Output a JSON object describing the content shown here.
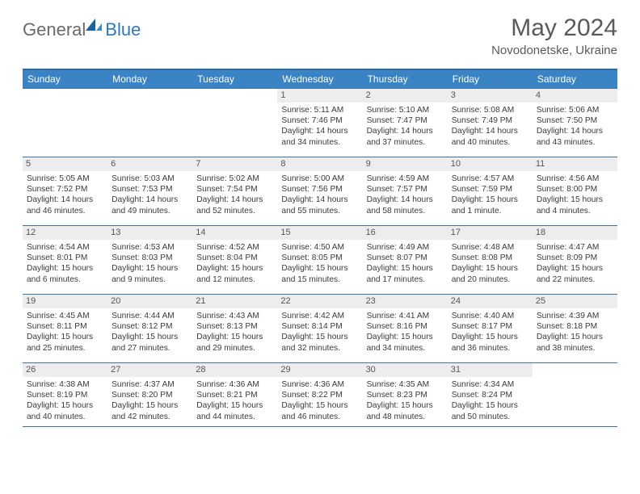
{
  "logo": {
    "text1": "General",
    "text2": "Blue"
  },
  "title": "May 2024",
  "location": "Novodonetske, Ukraine",
  "colors": {
    "header_bg": "#3a84c6",
    "header_border": "#2b6aa3",
    "row_border": "#3a74a8",
    "daynum_bg": "#ededed",
    "logo_gray": "#6a6a6a",
    "logo_blue": "#3178b9",
    "text_gray": "#5a5a5a",
    "cell_text": "#3a3a3a"
  },
  "daysOfWeek": [
    "Sunday",
    "Monday",
    "Tuesday",
    "Wednesday",
    "Thursday",
    "Friday",
    "Saturday"
  ],
  "weeks": [
    [
      null,
      null,
      null,
      {
        "n": "1",
        "sr": "5:11 AM",
        "ss": "7:46 PM",
        "dl1": "Daylight: 14 hours",
        "dl2": "and 34 minutes."
      },
      {
        "n": "2",
        "sr": "5:10 AM",
        "ss": "7:47 PM",
        "dl1": "Daylight: 14 hours",
        "dl2": "and 37 minutes."
      },
      {
        "n": "3",
        "sr": "5:08 AM",
        "ss": "7:49 PM",
        "dl1": "Daylight: 14 hours",
        "dl2": "and 40 minutes."
      },
      {
        "n": "4",
        "sr": "5:06 AM",
        "ss": "7:50 PM",
        "dl1": "Daylight: 14 hours",
        "dl2": "and 43 minutes."
      }
    ],
    [
      {
        "n": "5",
        "sr": "5:05 AM",
        "ss": "7:52 PM",
        "dl1": "Daylight: 14 hours",
        "dl2": "and 46 minutes."
      },
      {
        "n": "6",
        "sr": "5:03 AM",
        "ss": "7:53 PM",
        "dl1": "Daylight: 14 hours",
        "dl2": "and 49 minutes."
      },
      {
        "n": "7",
        "sr": "5:02 AM",
        "ss": "7:54 PM",
        "dl1": "Daylight: 14 hours",
        "dl2": "and 52 minutes."
      },
      {
        "n": "8",
        "sr": "5:00 AM",
        "ss": "7:56 PM",
        "dl1": "Daylight: 14 hours",
        "dl2": "and 55 minutes."
      },
      {
        "n": "9",
        "sr": "4:59 AM",
        "ss": "7:57 PM",
        "dl1": "Daylight: 14 hours",
        "dl2": "and 58 minutes."
      },
      {
        "n": "10",
        "sr": "4:57 AM",
        "ss": "7:59 PM",
        "dl1": "Daylight: 15 hours",
        "dl2": "and 1 minute."
      },
      {
        "n": "11",
        "sr": "4:56 AM",
        "ss": "8:00 PM",
        "dl1": "Daylight: 15 hours",
        "dl2": "and 4 minutes."
      }
    ],
    [
      {
        "n": "12",
        "sr": "4:54 AM",
        "ss": "8:01 PM",
        "dl1": "Daylight: 15 hours",
        "dl2": "and 6 minutes."
      },
      {
        "n": "13",
        "sr": "4:53 AM",
        "ss": "8:03 PM",
        "dl1": "Daylight: 15 hours",
        "dl2": "and 9 minutes."
      },
      {
        "n": "14",
        "sr": "4:52 AM",
        "ss": "8:04 PM",
        "dl1": "Daylight: 15 hours",
        "dl2": "and 12 minutes."
      },
      {
        "n": "15",
        "sr": "4:50 AM",
        "ss": "8:05 PM",
        "dl1": "Daylight: 15 hours",
        "dl2": "and 15 minutes."
      },
      {
        "n": "16",
        "sr": "4:49 AM",
        "ss": "8:07 PM",
        "dl1": "Daylight: 15 hours",
        "dl2": "and 17 minutes."
      },
      {
        "n": "17",
        "sr": "4:48 AM",
        "ss": "8:08 PM",
        "dl1": "Daylight: 15 hours",
        "dl2": "and 20 minutes."
      },
      {
        "n": "18",
        "sr": "4:47 AM",
        "ss": "8:09 PM",
        "dl1": "Daylight: 15 hours",
        "dl2": "and 22 minutes."
      }
    ],
    [
      {
        "n": "19",
        "sr": "4:45 AM",
        "ss": "8:11 PM",
        "dl1": "Daylight: 15 hours",
        "dl2": "and 25 minutes."
      },
      {
        "n": "20",
        "sr": "4:44 AM",
        "ss": "8:12 PM",
        "dl1": "Daylight: 15 hours",
        "dl2": "and 27 minutes."
      },
      {
        "n": "21",
        "sr": "4:43 AM",
        "ss": "8:13 PM",
        "dl1": "Daylight: 15 hours",
        "dl2": "and 29 minutes."
      },
      {
        "n": "22",
        "sr": "4:42 AM",
        "ss": "8:14 PM",
        "dl1": "Daylight: 15 hours",
        "dl2": "and 32 minutes."
      },
      {
        "n": "23",
        "sr": "4:41 AM",
        "ss": "8:16 PM",
        "dl1": "Daylight: 15 hours",
        "dl2": "and 34 minutes."
      },
      {
        "n": "24",
        "sr": "4:40 AM",
        "ss": "8:17 PM",
        "dl1": "Daylight: 15 hours",
        "dl2": "and 36 minutes."
      },
      {
        "n": "25",
        "sr": "4:39 AM",
        "ss": "8:18 PM",
        "dl1": "Daylight: 15 hours",
        "dl2": "and 38 minutes."
      }
    ],
    [
      {
        "n": "26",
        "sr": "4:38 AM",
        "ss": "8:19 PM",
        "dl1": "Daylight: 15 hours",
        "dl2": "and 40 minutes."
      },
      {
        "n": "27",
        "sr": "4:37 AM",
        "ss": "8:20 PM",
        "dl1": "Daylight: 15 hours",
        "dl2": "and 42 minutes."
      },
      {
        "n": "28",
        "sr": "4:36 AM",
        "ss": "8:21 PM",
        "dl1": "Daylight: 15 hours",
        "dl2": "and 44 minutes."
      },
      {
        "n": "29",
        "sr": "4:36 AM",
        "ss": "8:22 PM",
        "dl1": "Daylight: 15 hours",
        "dl2": "and 46 minutes."
      },
      {
        "n": "30",
        "sr": "4:35 AM",
        "ss": "8:23 PM",
        "dl1": "Daylight: 15 hours",
        "dl2": "and 48 minutes."
      },
      {
        "n": "31",
        "sr": "4:34 AM",
        "ss": "8:24 PM",
        "dl1": "Daylight: 15 hours",
        "dl2": "and 50 minutes."
      },
      null
    ]
  ]
}
